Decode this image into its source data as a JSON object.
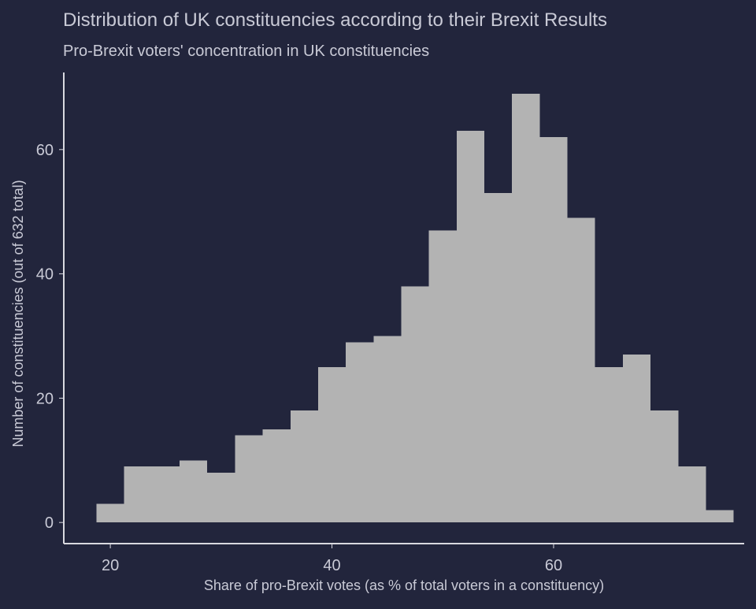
{
  "colors": {
    "background": "#22253c",
    "bar": "#b3b3b3",
    "text": "#c9cad6",
    "axis": "#d9d9e0"
  },
  "chart_data": {
    "type": "bar",
    "title": "Distribution of UK constituencies according to their Brexit Results",
    "subtitle": "Pro-Brexit voters' concentration in UK constituencies",
    "xlabel": "Share of pro-Brexit votes (as % of total voters in a constituency)",
    "ylabel": "Number of constituencies (out of 632 total)",
    "xlim": [
      15.8,
      77.2
    ],
    "ylim": [
      -3.4,
      72.4
    ],
    "xticks": [
      20,
      40,
      60
    ],
    "yticks": [
      0,
      20,
      40,
      60
    ],
    "grid": false,
    "bin_width": 2.5,
    "bins": [
      {
        "x0": 18.75,
        "x1": 21.25,
        "value": 3
      },
      {
        "x0": 21.25,
        "x1": 23.75,
        "value": 9
      },
      {
        "x0": 23.75,
        "x1": 26.25,
        "value": 9
      },
      {
        "x0": 26.25,
        "x1": 28.75,
        "value": 10
      },
      {
        "x0": 28.75,
        "x1": 31.25,
        "value": 8
      },
      {
        "x0": 31.25,
        "x1": 33.75,
        "value": 14
      },
      {
        "x0": 33.75,
        "x1": 36.25,
        "value": 15
      },
      {
        "x0": 36.25,
        "x1": 38.75,
        "value": 18
      },
      {
        "x0": 38.75,
        "x1": 41.25,
        "value": 25
      },
      {
        "x0": 41.25,
        "x1": 43.75,
        "value": 29
      },
      {
        "x0": 43.75,
        "x1": 46.25,
        "value": 30
      },
      {
        "x0": 46.25,
        "x1": 48.75,
        "value": 38
      },
      {
        "x0": 48.75,
        "x1": 51.25,
        "value": 47
      },
      {
        "x0": 51.25,
        "x1": 53.75,
        "value": 63
      },
      {
        "x0": 53.75,
        "x1": 56.25,
        "value": 53
      },
      {
        "x0": 56.25,
        "x1": 58.75,
        "value": 69
      },
      {
        "x0": 58.75,
        "x1": 61.25,
        "value": 62
      },
      {
        "x0": 61.25,
        "x1": 63.75,
        "value": 49
      },
      {
        "x0": 63.75,
        "x1": 66.25,
        "value": 25
      },
      {
        "x0": 66.25,
        "x1": 68.75,
        "value": 27
      },
      {
        "x0": 68.75,
        "x1": 71.25,
        "value": 18
      },
      {
        "x0": 71.25,
        "x1": 73.75,
        "value": 9
      },
      {
        "x0": 73.75,
        "x1": 76.25,
        "value": 2
      }
    ]
  }
}
